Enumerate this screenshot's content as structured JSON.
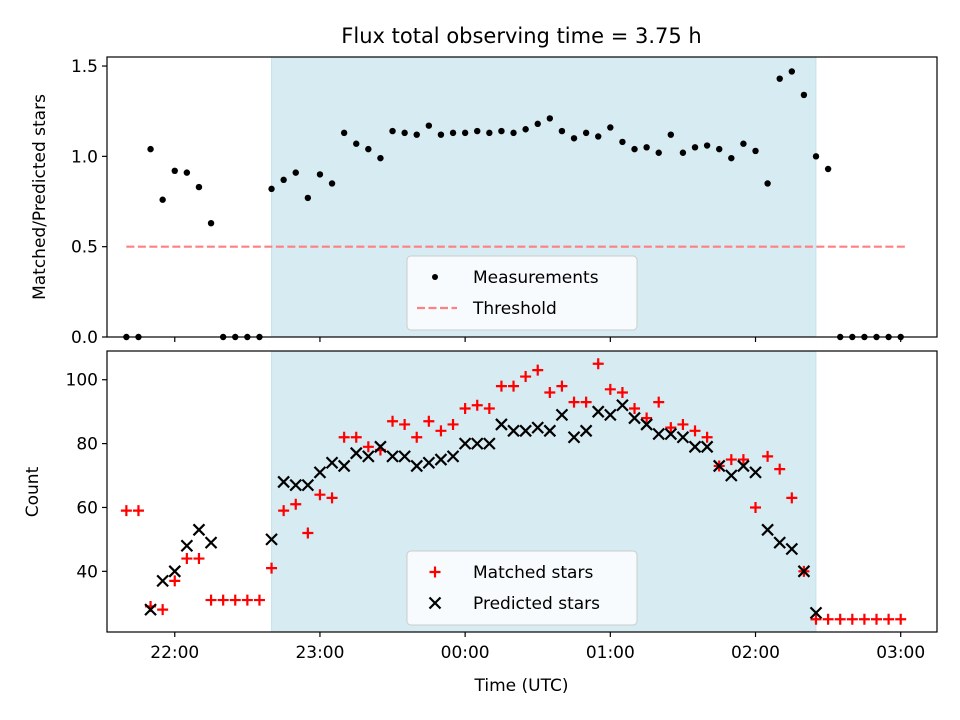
{
  "chart_data": [
    {
      "type": "scatter",
      "title": "Flux total observing time = 3.75 h",
      "xlabel": "",
      "ylabel": "Matched/Predicted stars",
      "ylim": [
        0.0,
        1.55
      ],
      "yticks": [
        0.0,
        0.5,
        1.0,
        1.5
      ],
      "ytick_labels": [
        "0.0",
        "0.5",
        "1.0",
        "1.5"
      ],
      "xlim": [
        "21:32",
        "03:15"
      ],
      "xticks": [
        "22:00",
        "23:00",
        "00:00",
        "01:00",
        "02:00",
        "03:00"
      ],
      "grid": false,
      "legend": "lower center",
      "shaded_interval": [
        "22:40",
        "02:25"
      ],
      "threshold": {
        "name": "Threshold",
        "value": 0.5,
        "x_range": [
          "21:40",
          "03:02"
        ],
        "color": "#ff8080"
      },
      "series": [
        {
          "name": "Measurements",
          "marker": "dot",
          "color": "#000000",
          "x": [
            "21:40",
            "21:45",
            "21:50",
            "21:55",
            "22:00",
            "22:05",
            "22:10",
            "22:15",
            "22:20",
            "22:25",
            "22:30",
            "22:35",
            "22:40",
            "22:45",
            "22:50",
            "22:55",
            "23:00",
            "23:05",
            "23:10",
            "23:15",
            "23:20",
            "23:25",
            "23:30",
            "23:35",
            "23:40",
            "23:45",
            "23:50",
            "23:55",
            "00:00",
            "00:05",
            "00:10",
            "00:15",
            "00:20",
            "00:25",
            "00:30",
            "00:35",
            "00:40",
            "00:45",
            "00:50",
            "00:55",
            "01:00",
            "01:05",
            "01:10",
            "01:15",
            "01:20",
            "01:25",
            "01:30",
            "01:35",
            "01:40",
            "01:45",
            "01:50",
            "01:55",
            "02:00",
            "02:05",
            "02:10",
            "02:15",
            "02:20",
            "02:25",
            "02:30",
            "02:35",
            "02:40",
            "02:45",
            "02:50",
            "02:55",
            "03:00"
          ],
          "y": [
            0.0,
            0.0,
            1.04,
            0.76,
            0.92,
            0.91,
            0.83,
            0.63,
            0.0,
            0.0,
            0.0,
            0.0,
            0.82,
            0.87,
            0.91,
            0.77,
            0.9,
            0.85,
            1.13,
            1.07,
            1.04,
            0.99,
            1.14,
            1.13,
            1.12,
            1.17,
            1.12,
            1.13,
            1.13,
            1.14,
            1.13,
            1.14,
            1.13,
            1.15,
            1.18,
            1.21,
            1.14,
            1.1,
            1.13,
            1.11,
            1.16,
            1.08,
            1.04,
            1.05,
            1.02,
            1.12,
            1.02,
            1.05,
            1.06,
            1.04,
            0.99,
            1.07,
            1.03,
            0.85,
            1.43,
            1.47,
            1.34,
            1.0,
            0.93,
            0.0,
            0.0,
            0.0,
            0.0,
            0.0,
            0.0
          ]
        }
      ]
    },
    {
      "type": "scatter",
      "title": "",
      "xlabel": "Time (UTC)",
      "ylabel": "Count",
      "ylim": [
        21,
        109
      ],
      "yticks": [
        40,
        60,
        80,
        100
      ],
      "ytick_labels": [
        "40",
        "60",
        "80",
        "100"
      ],
      "xlim": [
        "21:32",
        "03:15"
      ],
      "xticks": [
        "22:00",
        "23:00",
        "00:00",
        "01:00",
        "02:00",
        "03:00"
      ],
      "xtick_labels": [
        "22:00",
        "23:00",
        "00:00",
        "01:00",
        "02:00",
        "03:00"
      ],
      "grid": false,
      "legend": "lower center",
      "shaded_interval": [
        "22:40",
        "02:25"
      ],
      "series": [
        {
          "name": "Matched stars",
          "marker": "plus",
          "color": "#ff0000",
          "x": [
            "21:40",
            "21:45",
            "21:50",
            "21:55",
            "22:00",
            "22:05",
            "22:10",
            "22:15",
            "22:20",
            "22:25",
            "22:30",
            "22:35",
            "22:40",
            "22:45",
            "22:50",
            "22:55",
            "23:00",
            "23:05",
            "23:10",
            "23:15",
            "23:20",
            "23:25",
            "23:30",
            "23:35",
            "23:40",
            "23:45",
            "23:50",
            "23:55",
            "00:00",
            "00:05",
            "00:10",
            "00:15",
            "00:20",
            "00:25",
            "00:30",
            "00:35",
            "00:40",
            "00:45",
            "00:50",
            "00:55",
            "01:00",
            "01:05",
            "01:10",
            "01:15",
            "01:20",
            "01:25",
            "01:30",
            "01:35",
            "01:40",
            "01:45",
            "01:50",
            "01:55",
            "02:00",
            "02:05",
            "02:10",
            "02:15",
            "02:20",
            "02:25",
            "02:30",
            "02:35",
            "02:40",
            "02:45",
            "02:50",
            "02:55",
            "03:00"
          ],
          "y": [
            59,
            59,
            29,
            28,
            37,
            44,
            44,
            31,
            31,
            31,
            31,
            31,
            41,
            59,
            61,
            52,
            64,
            63,
            82,
            82,
            79,
            78,
            87,
            86,
            82,
            87,
            84,
            86,
            91,
            92,
            91,
            98,
            98,
            101,
            103,
            96,
            98,
            93,
            93,
            105,
            97,
            96,
            91,
            88,
            93,
            85,
            86,
            84,
            82,
            73,
            75,
            75,
            60,
            76,
            72,
            63,
            40,
            25,
            25,
            25,
            25,
            25,
            25,
            25,
            25
          ]
        },
        {
          "name": "Predicted stars",
          "marker": "x",
          "color": "#000000",
          "x": [
            "21:50",
            "21:55",
            "22:00",
            "22:05",
            "22:10",
            "22:15",
            "22:40",
            "22:45",
            "22:50",
            "22:55",
            "23:00",
            "23:05",
            "23:10",
            "23:15",
            "23:20",
            "23:25",
            "23:30",
            "23:35",
            "23:40",
            "23:45",
            "23:50",
            "23:55",
            "00:00",
            "00:05",
            "00:10",
            "00:15",
            "00:20",
            "00:25",
            "00:30",
            "00:35",
            "00:40",
            "00:45",
            "00:50",
            "00:55",
            "01:00",
            "01:05",
            "01:10",
            "01:15",
            "01:20",
            "01:25",
            "01:30",
            "01:35",
            "01:40",
            "01:45",
            "01:50",
            "01:55",
            "02:00",
            "02:05",
            "02:10",
            "02:15",
            "02:20",
            "02:25"
          ],
          "y": [
            28,
            37,
            40,
            48,
            53,
            49,
            50,
            68,
            67,
            67,
            71,
            74,
            73,
            77,
            76,
            79,
            76,
            76,
            73,
            74,
            75,
            76,
            80,
            80,
            80,
            86,
            84,
            84,
            85,
            84,
            89,
            82,
            84,
            90,
            89,
            92,
            88,
            86,
            83,
            83,
            82,
            79,
            79,
            73,
            70,
            73,
            71,
            53,
            49,
            47,
            40,
            27
          ]
        }
      ]
    }
  ]
}
